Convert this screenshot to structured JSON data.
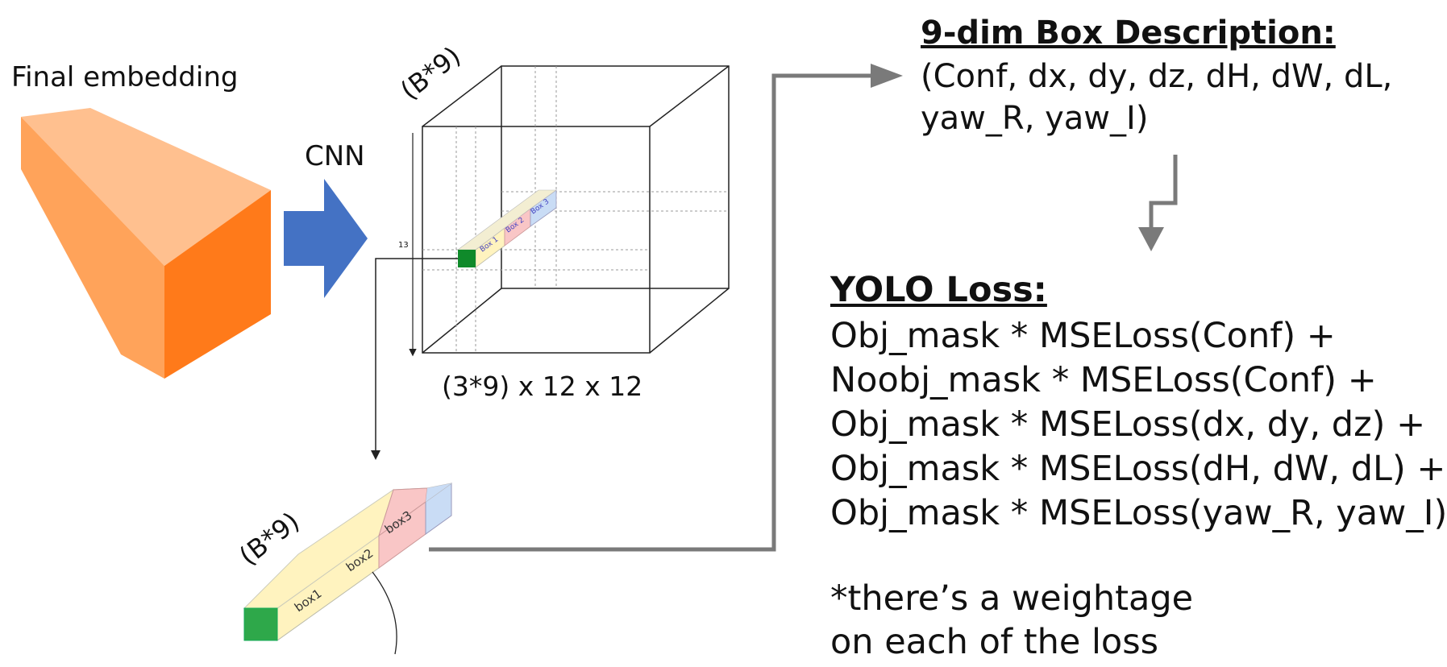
{
  "labels": {
    "final_embedding": "Final embedding",
    "cnn": "CNN",
    "cube_depth": "(B*9)",
    "cube_height_tick": "13",
    "output_dims": "(3*9) x 12 x 12",
    "strip_depth": "(B*9)"
  },
  "cube_boxes": [
    "Box 1",
    "Box 2",
    "Box 3"
  ],
  "strip_boxes": [
    "box1",
    "box2",
    "box3"
  ],
  "box_description": {
    "title": "9-dim Box Description:",
    "lines": [
      "(Conf, dx, dy, dz, dH, dW, dL,",
      "yaw_R, yaw_I)"
    ]
  },
  "yolo_loss": {
    "title": "YOLO Loss:",
    "lines": [
      "Obj_mask * MSELoss(Conf) +",
      "Noobj_mask * MSELoss(Conf) +",
      "Obj_mask * MSELoss(dx, dy, dz) +",
      "Obj_mask  * MSELoss(dH, dW, dL) +",
      "Obj_mask  * MSELoss(yaw_R, yaw_I)"
    ],
    "note": [
      "*there’s a weightage",
      "on each of the loss"
    ]
  },
  "colors": {
    "embed_front": "#ff7a1a",
    "embed_top": "#ffc08f",
    "embed_side": "#ffa35a",
    "cnn_arrow": "#4472c4",
    "cell_green": "#0f8a2a",
    "strip_green": "#2ea84a",
    "box1": "#fff3bf",
    "box2": "#f9c6c6",
    "box3": "#c9dcf5",
    "connector": "#7a7a7a"
  }
}
